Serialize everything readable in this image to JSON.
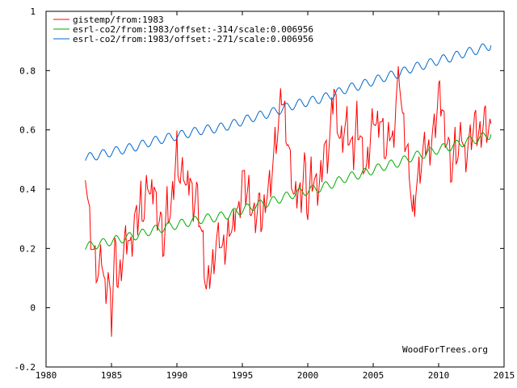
{
  "chart_data": {
    "type": "line",
    "title": "",
    "xlabel": "",
    "ylabel": "",
    "xlim": [
      1980,
      2015
    ],
    "ylim": [
      -0.2,
      1
    ],
    "x_ticks": [
      1980,
      1985,
      1990,
      1995,
      2000,
      2005,
      2010,
      2015
    ],
    "y_ticks": [
      -0.2,
      0,
      0.2,
      0.4,
      0.6,
      0.8,
      1
    ],
    "y_tick_labels": [
      "-0.2",
      "0",
      "0.2",
      "0.4",
      "0.6",
      "0.8",
      "1"
    ],
    "grid": false,
    "legend_position": "top-left",
    "watermark": "WoodForTrees.org",
    "series": [
      {
        "name": "gistemp/from:1983",
        "color": "#ff0000",
        "x": [
          1983.0,
          1983.25,
          1983.5,
          1983.75,
          1984.0,
          1984.25,
          1984.5,
          1984.75,
          1985.0,
          1985.25,
          1985.5,
          1985.75,
          1986.0,
          1986.25,
          1986.5,
          1986.75,
          1987.0,
          1987.25,
          1987.5,
          1987.75,
          1988.0,
          1988.25,
          1988.5,
          1988.75,
          1989.0,
          1989.25,
          1989.5,
          1989.75,
          1990.0,
          1990.25,
          1990.5,
          1990.75,
          1991.0,
          1991.25,
          1991.5,
          1991.75,
          1992.0,
          1992.25,
          1992.5,
          1992.75,
          1993.0,
          1993.25,
          1993.5,
          1993.75,
          1994.0,
          1994.25,
          1994.5,
          1994.75,
          1995.0,
          1995.25,
          1995.5,
          1995.75,
          1996.0,
          1996.25,
          1996.5,
          1996.75,
          1997.0,
          1997.25,
          1997.5,
          1997.75,
          1998.0,
          1998.25,
          1998.5,
          1998.75,
          1999.0,
          1999.25,
          1999.5,
          1999.75,
          2000.0,
          2000.25,
          2000.5,
          2000.75,
          2001.0,
          2001.25,
          2001.5,
          2001.75,
          2002.0,
          2002.25,
          2002.5,
          2002.75,
          2003.0,
          2003.25,
          2003.5,
          2003.75,
          2004.0,
          2004.25,
          2004.5,
          2004.75,
          2005.0,
          2005.25,
          2005.5,
          2005.75,
          2006.0,
          2006.25,
          2006.5,
          2006.75,
          2007.0,
          2007.25,
          2007.5,
          2007.75,
          2008.0,
          2008.25,
          2008.5,
          2008.75,
          2009.0,
          2009.25,
          2009.5,
          2009.75,
          2010.0,
          2010.25,
          2010.5,
          2010.75,
          2011.0,
          2011.25,
          2011.5,
          2011.75,
          2012.0,
          2012.25,
          2012.5,
          2012.75,
          2013.0,
          2013.25,
          2013.5,
          2013.75,
          2014.0
        ],
        "values": [
          0.49,
          0.33,
          0.22,
          0.15,
          0.1,
          0.18,
          0.05,
          0.12,
          -0.05,
          0.2,
          0.08,
          0.15,
          0.22,
          0.25,
          0.18,
          0.3,
          0.28,
          0.38,
          0.3,
          0.45,
          0.35,
          0.42,
          0.32,
          0.3,
          0.2,
          0.35,
          0.3,
          0.4,
          0.55,
          0.42,
          0.48,
          0.38,
          0.45,
          0.35,
          0.4,
          0.3,
          0.2,
          0.05,
          0.1,
          0.15,
          0.22,
          0.25,
          0.18,
          0.2,
          0.3,
          0.25,
          0.35,
          0.3,
          0.45,
          0.38,
          0.4,
          0.32,
          0.3,
          0.35,
          0.28,
          0.38,
          0.4,
          0.45,
          0.55,
          0.6,
          0.72,
          0.65,
          0.55,
          0.45,
          0.35,
          0.4,
          0.38,
          0.5,
          0.32,
          0.45,
          0.42,
          0.38,
          0.45,
          0.55,
          0.5,
          0.6,
          0.75,
          0.65,
          0.55,
          0.6,
          0.62,
          0.55,
          0.5,
          0.65,
          0.58,
          0.5,
          0.45,
          0.55,
          0.68,
          0.6,
          0.65,
          0.58,
          0.5,
          0.6,
          0.55,
          0.7,
          0.8,
          0.62,
          0.55,
          0.5,
          0.3,
          0.4,
          0.45,
          0.5,
          0.55,
          0.52,
          0.58,
          0.62,
          0.72,
          0.68,
          0.6,
          0.55,
          0.45,
          0.55,
          0.5,
          0.6,
          0.5,
          0.55,
          0.58,
          0.62,
          0.58,
          0.6,
          0.65,
          0.6,
          0.62
        ]
      },
      {
        "name": "esrl-co2/from:1983/offset:-314/scale:0.006956",
        "color": "#00aa00",
        "x": [
          1983.0,
          1984.0,
          1985.0,
          1986.0,
          1987.0,
          1988.0,
          1989.0,
          1990.0,
          1991.0,
          1992.0,
          1993.0,
          1994.0,
          1995.0,
          1996.0,
          1997.0,
          1998.0,
          1999.0,
          2000.0,
          2001.0,
          2002.0,
          2003.0,
          2004.0,
          2005.0,
          2006.0,
          2007.0,
          2008.0,
          2009.0,
          2010.0,
          2011.0,
          2012.0,
          2013.0,
          2014.0
        ],
        "values": [
          0.205,
          0.215,
          0.225,
          0.235,
          0.245,
          0.26,
          0.27,
          0.28,
          0.29,
          0.3,
          0.305,
          0.315,
          0.33,
          0.345,
          0.355,
          0.37,
          0.385,
          0.395,
          0.405,
          0.42,
          0.44,
          0.45,
          0.465,
          0.48,
          0.49,
          0.51,
          0.52,
          0.535,
          0.545,
          0.56,
          0.57,
          0.585
        ]
      },
      {
        "name": "esrl-co2/from:1983/offset:-271/scale:0.006956",
        "color": "#0066cc",
        "x": [
          1983.0,
          1984.0,
          1985.0,
          1986.0,
          1987.0,
          1988.0,
          1989.0,
          1990.0,
          1991.0,
          1992.0,
          1993.0,
          1994.0,
          1995.0,
          1996.0,
          1997.0,
          1998.0,
          1999.0,
          2000.0,
          2001.0,
          2002.0,
          2003.0,
          2004.0,
          2005.0,
          2006.0,
          2007.0,
          2008.0,
          2009.0,
          2010.0,
          2011.0,
          2012.0,
          2013.0,
          2014.0
        ],
        "values": [
          0.505,
          0.515,
          0.525,
          0.535,
          0.545,
          0.56,
          0.57,
          0.58,
          0.59,
          0.6,
          0.605,
          0.615,
          0.63,
          0.645,
          0.655,
          0.67,
          0.685,
          0.695,
          0.705,
          0.72,
          0.74,
          0.75,
          0.765,
          0.78,
          0.79,
          0.81,
          0.82,
          0.835,
          0.845,
          0.86,
          0.87,
          0.885
        ]
      }
    ]
  }
}
